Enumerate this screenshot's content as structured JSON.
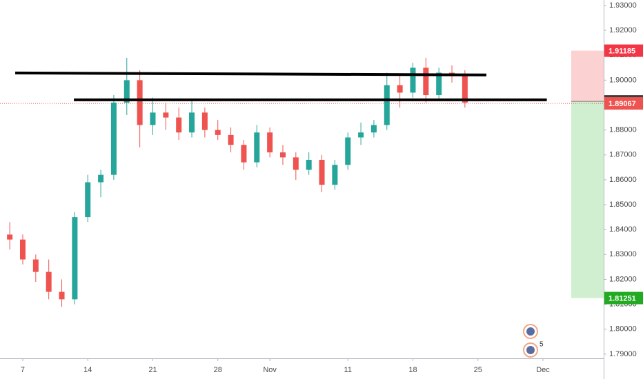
{
  "chart_data": {
    "type": "candlestick",
    "x": [
      -1,
      0,
      1,
      2,
      3,
      4,
      5,
      6,
      7,
      8,
      9,
      10,
      11,
      12,
      13,
      14,
      15,
      16,
      17,
      18,
      19,
      20,
      21,
      22,
      23,
      24,
      25,
      26,
      27,
      28,
      29,
      30,
      31,
      32,
      33,
      34
    ],
    "open": [
      1.838,
      1.836,
      1.828,
      1.823,
      1.815,
      1.812,
      1.845,
      1.859,
      1.862,
      1.891,
      1.9,
      1.882,
      1.887,
      1.885,
      1.879,
      1.887,
      1.88,
      1.878,
      1.874,
      1.867,
      1.879,
      1.871,
      1.869,
      1.864,
      1.868,
      1.858,
      1.866,
      1.877,
      1.879,
      1.882,
      1.898,
      1.895,
      1.905,
      1.894,
      1.903,
      1.902
    ],
    "high": [
      1.843,
      1.838,
      1.83,
      1.828,
      1.82,
      1.847,
      1.862,
      1.864,
      1.894,
      1.909,
      1.904,
      1.893,
      1.891,
      1.889,
      1.892,
      1.889,
      1.884,
      1.881,
      1.876,
      1.882,
      1.881,
      1.874,
      1.871,
      1.871,
      1.87,
      1.868,
      1.879,
      1.883,
      1.884,
      1.903,
      1.902,
      1.907,
      1.909,
      1.905,
      1.906,
      1.904
    ],
    "low": [
      1.832,
      1.826,
      1.819,
      1.812,
      1.809,
      1.81,
      1.843,
      1.853,
      1.86,
      1.886,
      1.873,
      1.878,
      1.88,
      1.876,
      1.877,
      1.877,
      1.876,
      1.871,
      1.864,
      1.865,
      1.869,
      1.866,
      1.86,
      1.862,
      1.855,
      1.856,
      1.864,
      1.874,
      1.877,
      1.88,
      1.889,
      1.893,
      1.891,
      1.892,
      1.899,
      1.889
    ],
    "close": [
      1.836,
      1.828,
      1.823,
      1.815,
      1.812,
      1.845,
      1.859,
      1.862,
      1.891,
      1.9,
      1.882,
      1.887,
      1.885,
      1.879,
      1.887,
      1.88,
      1.878,
      1.874,
      1.867,
      1.879,
      1.871,
      1.869,
      1.864,
      1.868,
      1.858,
      1.866,
      1.877,
      1.879,
      1.882,
      1.898,
      1.895,
      1.905,
      1.894,
      1.903,
      1.902,
      1.891
    ],
    "up_color": "#26a69a",
    "down_color": "#ef5350",
    "xlim": [
      -1.75,
      44.67
    ],
    "ylim": [
      1.7883,
      1.9322
    ],
    "xticks": [
      {
        "value": 0,
        "label": "7"
      },
      {
        "value": 5,
        "label": "14"
      },
      {
        "value": 10,
        "label": "21"
      },
      {
        "value": 15,
        "label": "28"
      },
      {
        "value": 19,
        "label": "Nov"
      },
      {
        "value": 25,
        "label": "11"
      },
      {
        "value": 30,
        "label": "18"
      },
      {
        "value": 35,
        "label": "25"
      },
      {
        "value": 40,
        "label": "Dec"
      }
    ],
    "yticks": [
      {
        "value": 1.93,
        "label": "1.93000"
      },
      {
        "value": 1.92,
        "label": "1.92000"
      },
      {
        "value": 1.91,
        "label": "1.91000"
      },
      {
        "value": 1.9,
        "label": "1.90000"
      },
      {
        "value": 1.89,
        "label": "1.89000"
      },
      {
        "value": 1.88,
        "label": "1.88000"
      },
      {
        "value": 1.87,
        "label": "1.87000"
      },
      {
        "value": 1.86,
        "label": "1.86000"
      },
      {
        "value": 1.85,
        "label": "1.85000"
      },
      {
        "value": 1.84,
        "label": "1.84000"
      },
      {
        "value": 1.83,
        "label": "1.83000"
      },
      {
        "value": 1.82,
        "label": "1.82000"
      },
      {
        "value": 1.81,
        "label": "1.81000"
      },
      {
        "value": 1.8,
        "label": "1.80000"
      },
      {
        "value": 1.79,
        "label": "1.79000"
      }
    ],
    "trend_lines": [
      {
        "x": [
          -0.58,
          35.65
        ],
        "y": [
          1.9029,
          1.9021
        ]
      },
      {
        "x": [
          3.93,
          40.3
        ],
        "y": [
          1.8921,
          1.8921
        ]
      }
    ],
    "last_price": 1.89067,
    "position": {
      "target": 1.91185,
      "entry": 1.89149,
      "stop": 1.81251
    },
    "events_count": "5"
  }
}
